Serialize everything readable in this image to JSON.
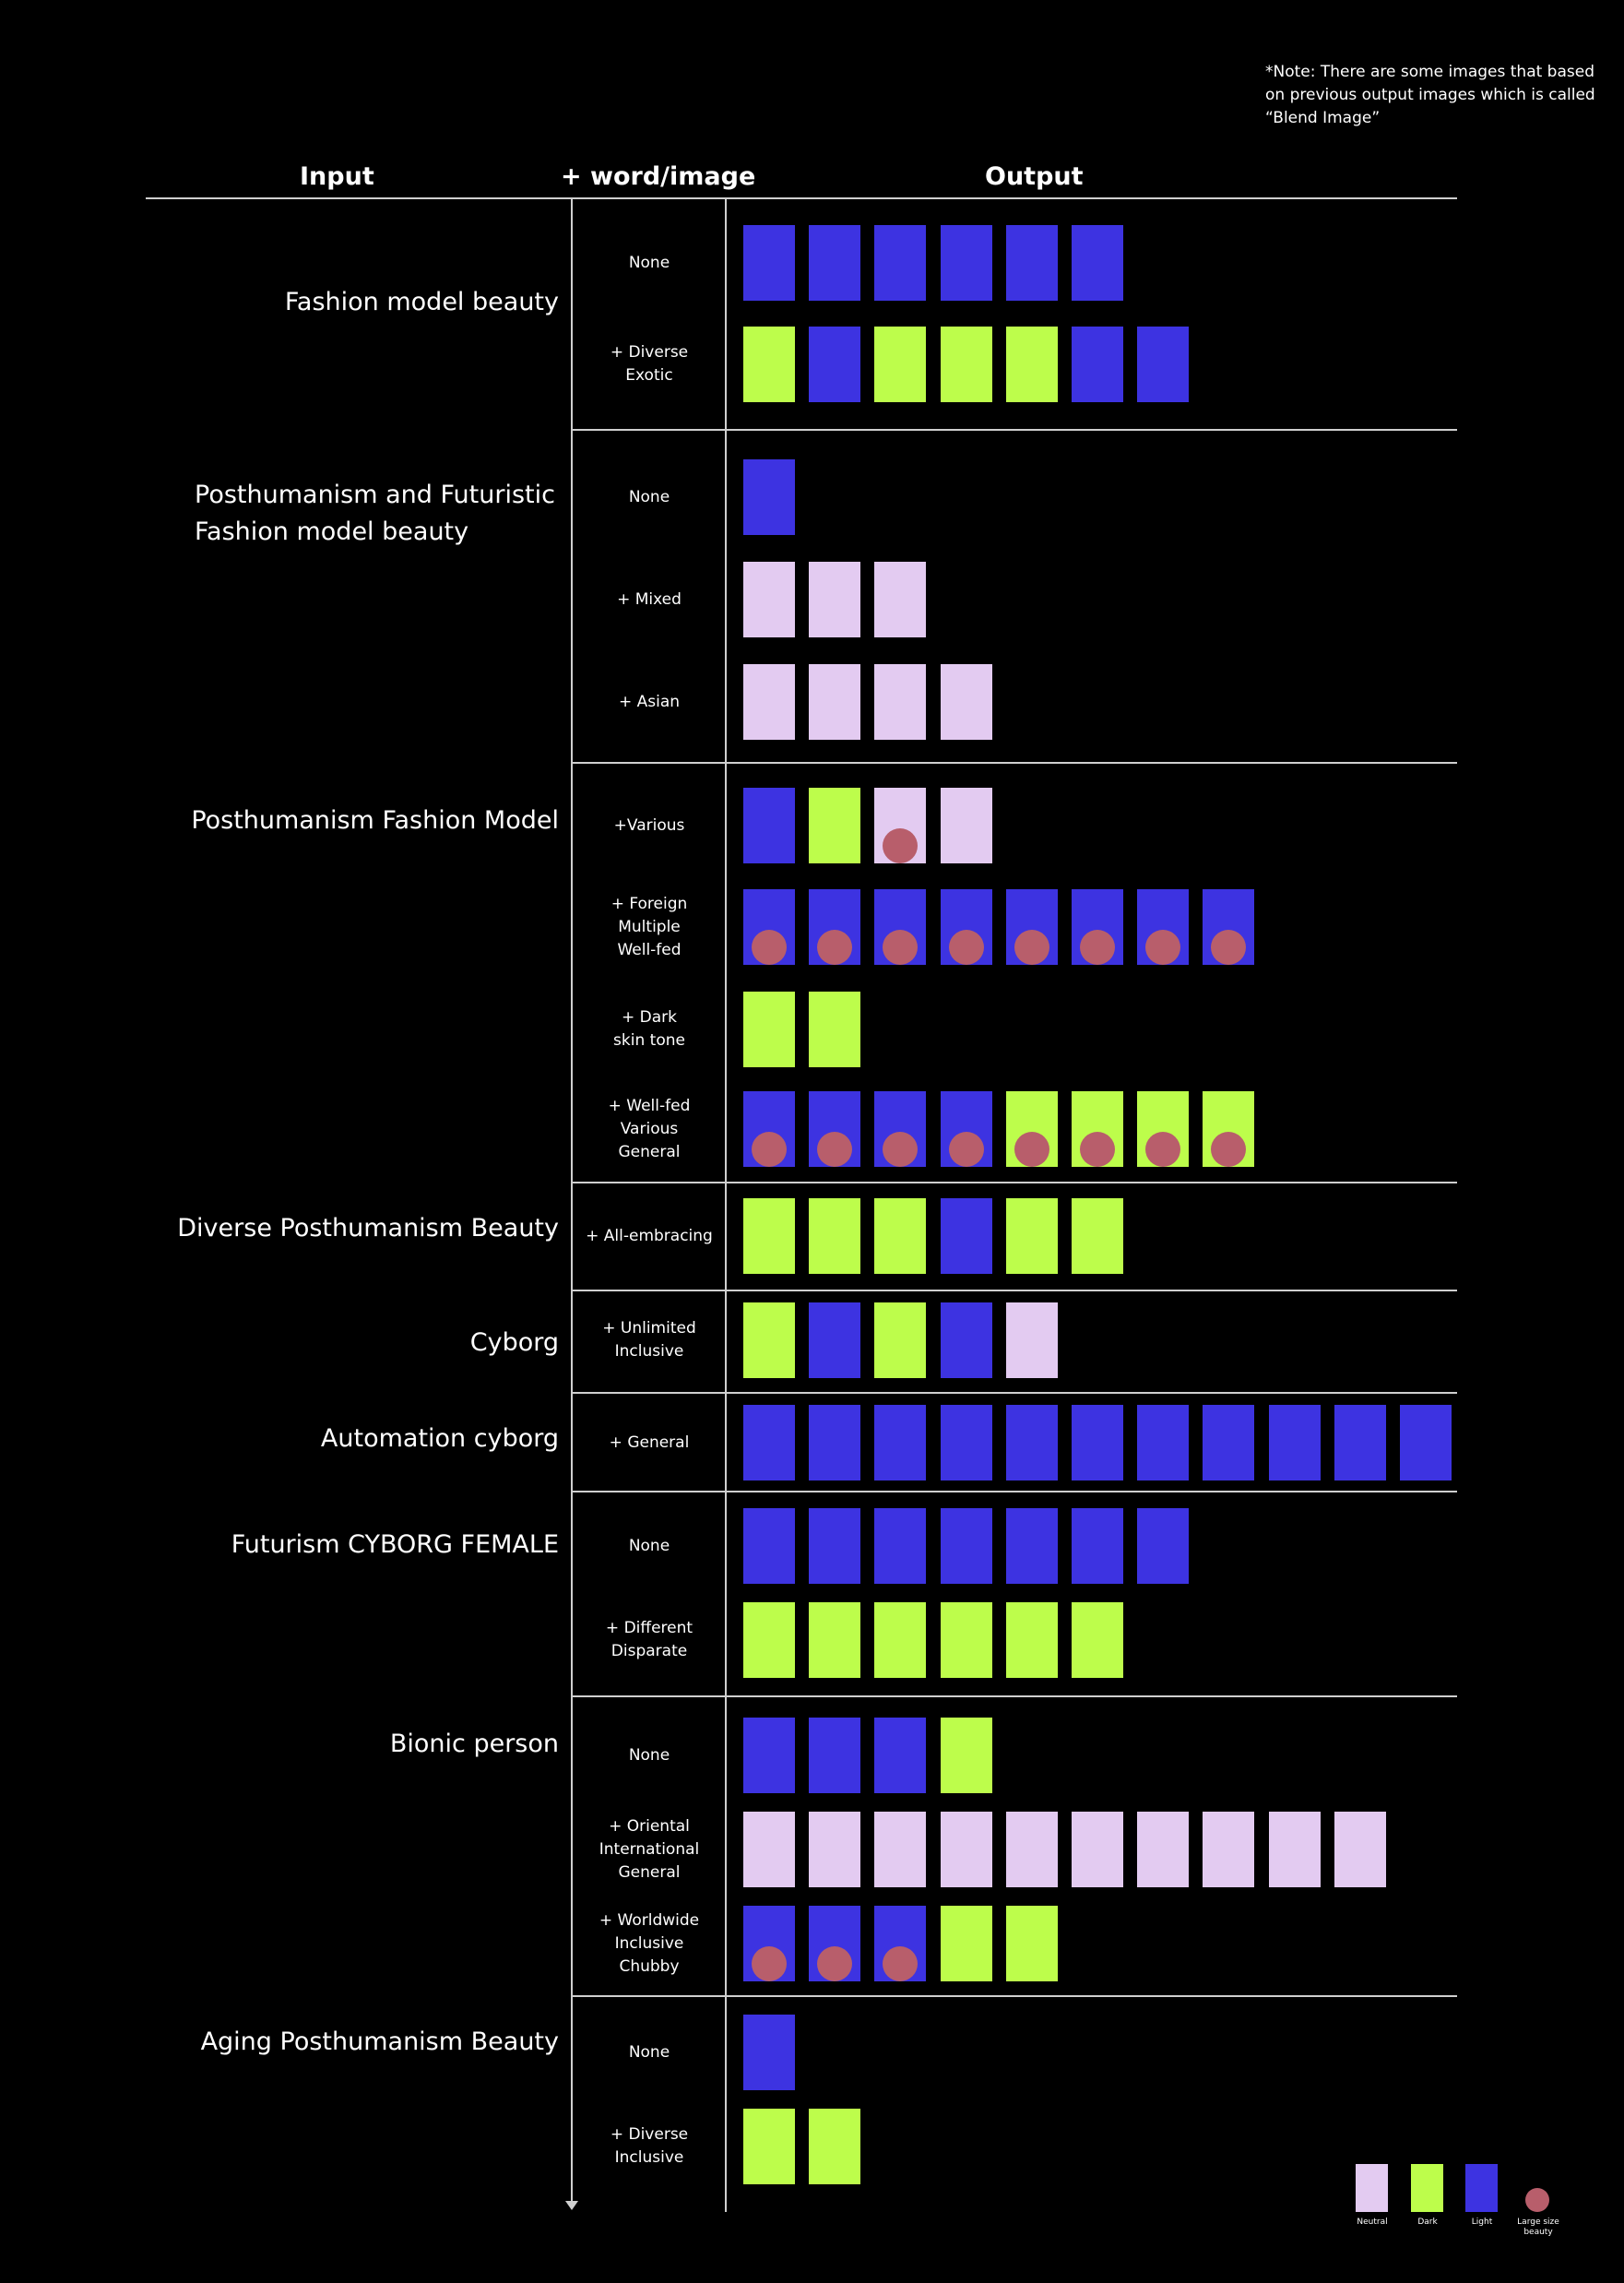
{
  "note": "*Note: There are some images that based on previous output images which is called “Blend Image”",
  "headers": {
    "input": "Input",
    "modifier": "+ word/image",
    "output": "Output"
  },
  "colors": {
    "Neutral": "#e3cbf1",
    "Dark": "#bdfd4b",
    "Light": "#3d33e1",
    "Large": "#b85e6b",
    "background": "#000000",
    "rule": "#cfcfcf"
  },
  "legend": [
    {
      "key": "N",
      "label": "Neutral"
    },
    {
      "key": "D",
      "label": "Dark"
    },
    {
      "key": "L",
      "label": "Light"
    },
    {
      "key": "dot",
      "label": "Large size beauty"
    }
  ],
  "chart_data": {
    "type": "table",
    "title": "",
    "columns": [
      "Input",
      "+ word/image",
      "Output"
    ],
    "groups": [
      {
        "input": "Fashion model beauty",
        "rows": [
          {
            "modifier": "None",
            "outputs": [
              "L",
              "L",
              "L",
              "L",
              "L",
              "L"
            ],
            "large": []
          },
          {
            "modifier": "+ Diverse\nExotic",
            "outputs": [
              "D",
              "L",
              "D",
              "D",
              "D",
              "L",
              "L"
            ],
            "large": []
          }
        ]
      },
      {
        "input": "Posthumanism and Futuristic\nFashion model beauty",
        "rows": [
          {
            "modifier": "None",
            "outputs": [
              "L"
            ],
            "large": []
          },
          {
            "modifier": "+ Mixed",
            "outputs": [
              "N",
              "N",
              "N"
            ],
            "large": []
          },
          {
            "modifier": "+ Asian",
            "outputs": [
              "N",
              "N",
              "N",
              "N"
            ],
            "large": []
          }
        ]
      },
      {
        "input": "Posthumanism Fashion Model",
        "rows": [
          {
            "modifier": "+Various",
            "outputs": [
              "L",
              "D",
              "N",
              "N"
            ],
            "large": [
              2
            ]
          },
          {
            "modifier": "+ Foreign\nMultiple\nWell-fed",
            "outputs": [
              "L",
              "L",
              "L",
              "L",
              "L",
              "L",
              "L",
              "L"
            ],
            "large": [
              0,
              1,
              2,
              3,
              4,
              5,
              6,
              7
            ]
          },
          {
            "modifier": "+ Dark\nskin tone",
            "outputs": [
              "D",
              "D"
            ],
            "large": []
          },
          {
            "modifier": "+ Well-fed\nVarious\nGeneral",
            "outputs": [
              "L",
              "L",
              "L",
              "L",
              "D",
              "D",
              "D",
              "D"
            ],
            "large": [
              0,
              1,
              2,
              3,
              4,
              5,
              6,
              7
            ]
          }
        ]
      },
      {
        "input": "Diverse Posthumanism Beauty",
        "rows": [
          {
            "modifier": "+ All-embracing",
            "outputs": [
              "D",
              "D",
              "D",
              "L",
              "D",
              "D"
            ],
            "large": []
          }
        ]
      },
      {
        "input": "Cyborg",
        "rows": [
          {
            "modifier": "+ Unlimited\nInclusive",
            "outputs": [
              "D",
              "L",
              "D",
              "L",
              "N"
            ],
            "large": []
          }
        ]
      },
      {
        "input": "Automation cyborg",
        "rows": [
          {
            "modifier": "+ General",
            "outputs": [
              "L",
              "L",
              "L",
              "L",
              "L",
              "L",
              "L",
              "L",
              "L",
              "L",
              "L"
            ],
            "large": []
          }
        ]
      },
      {
        "input": "Futurism CYBORG FEMALE",
        "rows": [
          {
            "modifier": "None",
            "outputs": [
              "L",
              "L",
              "L",
              "L",
              "L",
              "L",
              "L"
            ],
            "large": []
          },
          {
            "modifier": "+ Different\nDisparate",
            "outputs": [
              "D",
              "D",
              "D",
              "D",
              "D",
              "D"
            ],
            "large": []
          }
        ]
      },
      {
        "input": "Bionic person",
        "rows": [
          {
            "modifier": "None",
            "outputs": [
              "L",
              "L",
              "L",
              "D"
            ],
            "large": []
          },
          {
            "modifier": "+ Oriental\nInternational\nGeneral",
            "outputs": [
              "N",
              "N",
              "N",
              "N",
              "N",
              "N",
              "N",
              "N",
              "N",
              "N"
            ],
            "large": []
          },
          {
            "modifier": "+ Worldwide\nInclusive\nChubby",
            "outputs": [
              "L",
              "L",
              "L",
              "D",
              "D"
            ],
            "large": [
              0,
              1,
              2
            ]
          }
        ]
      },
      {
        "input": "Aging Posthumanism Beauty",
        "rows": [
          {
            "modifier": "None",
            "outputs": [
              "L"
            ],
            "large": []
          },
          {
            "modifier": "+ Diverse\nInclusive",
            "outputs": [
              "D",
              "D"
            ],
            "large": []
          }
        ]
      }
    ]
  }
}
